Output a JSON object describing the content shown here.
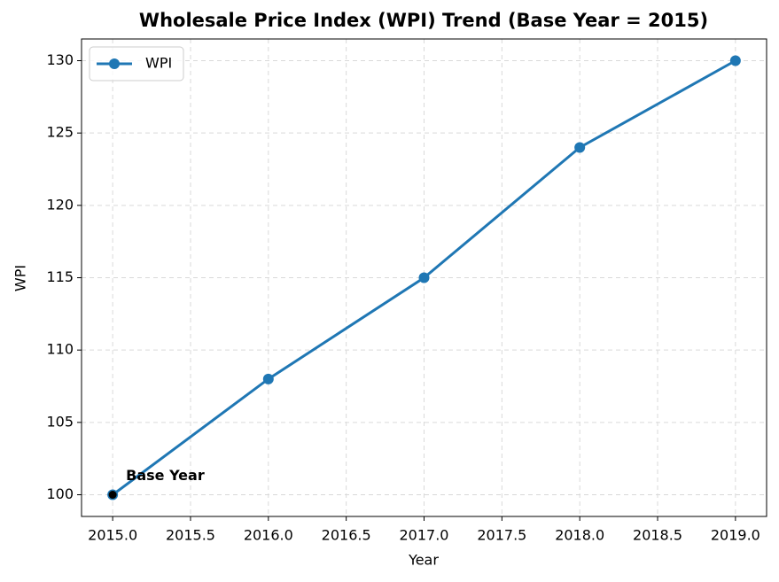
{
  "chart_data": {
    "type": "line",
    "title": "Wholesale Price Index (WPI) Trend (Base Year = 2015)",
    "x_label": "Year",
    "y_label": "WPI",
    "x": [
      2015,
      2016,
      2017,
      2018,
      2019
    ],
    "series": [
      {
        "name": "WPI",
        "color": "#1f77b4",
        "values": [
          100,
          108,
          115,
          124,
          130
        ]
      }
    ],
    "annotation": "Base Year",
    "xlim": [
      2014.8,
      2019.2
    ],
    "xticks": [
      {
        "value": 2015,
        "label": "2015.0"
      },
      2015.5,
      {
        "value": 2016,
        "label": "2016.0"
      },
      2016.5,
      {
        "value": 2017,
        "label": "2017.0"
      },
      2017.5,
      {
        "value": 2018,
        "label": "2018.0"
      },
      2018.5,
      {
        "value": 2019,
        "label": "2019.0"
      }
    ],
    "ylim": [
      98.5,
      131.5
    ],
    "yticks": [
      100,
      105,
      110,
      115,
      120,
      125,
      130
    ],
    "grid": true,
    "legend": "upper left"
  }
}
